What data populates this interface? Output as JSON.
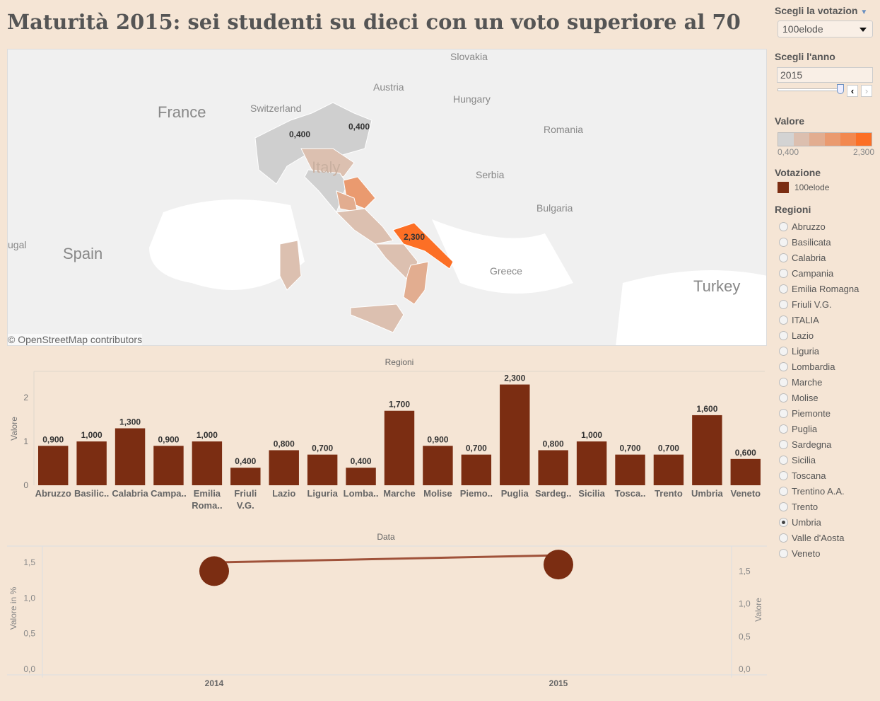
{
  "title": "Maturità 2015: sei studenti su dieci con un voto superiore al 70",
  "map": {
    "labels": [
      "France",
      "Switzerland",
      "Austria",
      "Slovakia",
      "Hungary",
      "Romania",
      "Serbia",
      "Bulgaria",
      "Greece",
      "Turkey",
      "Spain",
      "Italy",
      "ugal"
    ],
    "data_labels": [
      "0,400",
      "0,400",
      "2,300"
    ],
    "attribution": "© OpenStreetMap contributors"
  },
  "sidebar": {
    "votazione_label": "Scegli la votazion",
    "votazione_value": "100elode",
    "anno_label": "Scegli l'anno",
    "anno_value": "2015",
    "valore_label": "Valore",
    "valore_min": "0,400",
    "valore_max": "2,300",
    "valore_colors": [
      "#d3d3d3",
      "#dcbfaf",
      "#e2ad90",
      "#ea9a6f",
      "#f2884f",
      "#fc6f25"
    ],
    "legend_title": "Votazione",
    "legend_item": "100elode",
    "legend_color": "#7b2d12",
    "regioni_label": "Regioni",
    "regioni": [
      "Abruzzo",
      "Basilicata",
      "Calabria",
      "Campania",
      "Emilia Romagna",
      "Friuli V.G.",
      "ITALIA",
      "Lazio",
      "Liguria",
      "Lombardia",
      "Marche",
      "Molise",
      "Piemonte",
      "Puglia",
      "Sardegna",
      "Sicilia",
      "Toscana",
      "Trentino A.A.",
      "Trento",
      "Umbria",
      "Valle d'Aosta",
      "Veneto"
    ],
    "selected_region": "Umbria"
  },
  "chart_data": [
    {
      "type": "bar",
      "title": "Regioni",
      "ylabel": "Valore",
      "ylim": [
        0,
        2.6
      ],
      "yticks": [
        "0",
        "1",
        "2"
      ],
      "categories": [
        "Abruzzo",
        "Basilic..",
        "Calabria",
        "Campa..",
        "Emilia Roma..",
        "Friuli V.G.",
        "Lazio",
        "Liguria",
        "Lomba..",
        "Marche",
        "Molise",
        "Piemo..",
        "Puglia",
        "Sardeg..",
        "Sicilia",
        "Tosca..",
        "Trento",
        "Umbria",
        "Veneto"
      ],
      "values": [
        0.9,
        1.0,
        1.3,
        0.9,
        1.0,
        0.4,
        0.8,
        0.7,
        0.4,
        1.7,
        0.9,
        0.7,
        2.3,
        0.8,
        1.0,
        0.7,
        0.7,
        1.6,
        0.6
      ],
      "data_labels": [
        "0,900",
        "1,000",
        "1,300",
        "0,900",
        "1,000",
        "0,400",
        "0,800",
        "0,700",
        "0,400",
        "1,700",
        "0,900",
        "0,700",
        "2,300",
        "0,800",
        "1,000",
        "0,700",
        "0,700",
        "1,600",
        "0,600"
      ],
      "color": "#7b2d12"
    },
    {
      "type": "line",
      "title": "Data",
      "x": [
        "2014",
        "2015"
      ],
      "ylabel_left": "Valore in %",
      "yticks_left": [
        "0,0",
        "0,5",
        "1,0",
        "1,5"
      ],
      "ylim_left": [
        0,
        1.7
      ],
      "ylabel_right": "Valore",
      "yticks_right": [
        "0,0",
        "0,5",
        "1,0",
        "1,5"
      ],
      "ylim_right": [
        0,
        1.85
      ],
      "line_values": [
        1.5,
        1.6
      ],
      "circle_values": [
        1.5,
        1.6
      ],
      "line_color": "#a0523a",
      "circle_color": "#7b2d12"
    }
  ]
}
